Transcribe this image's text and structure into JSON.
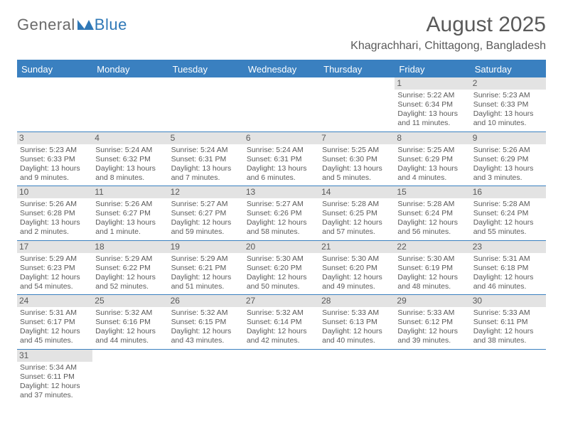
{
  "logo": {
    "part1": "General",
    "part2": "Blue"
  },
  "title": "August 2025",
  "location": "Khagrachhari, Chittagong, Bangladesh",
  "dayHeaders": [
    "Sunday",
    "Monday",
    "Tuesday",
    "Wednesday",
    "Thursday",
    "Friday",
    "Saturday"
  ],
  "colors": {
    "accent": "#3a80c0",
    "text": "#5a5a5a",
    "dayBg": "#e3e3e3",
    "background": "#ffffff"
  },
  "weeks": [
    [
      {
        "n": "",
        "sr": "",
        "ss": "",
        "dl": ""
      },
      {
        "n": "",
        "sr": "",
        "ss": "",
        "dl": ""
      },
      {
        "n": "",
        "sr": "",
        "ss": "",
        "dl": ""
      },
      {
        "n": "",
        "sr": "",
        "ss": "",
        "dl": ""
      },
      {
        "n": "",
        "sr": "",
        "ss": "",
        "dl": ""
      },
      {
        "n": "1",
        "sr": "Sunrise: 5:22 AM",
        "ss": "Sunset: 6:34 PM",
        "dl": "Daylight: 13 hours and 11 minutes."
      },
      {
        "n": "2",
        "sr": "Sunrise: 5:23 AM",
        "ss": "Sunset: 6:33 PM",
        "dl": "Daylight: 13 hours and 10 minutes."
      }
    ],
    [
      {
        "n": "3",
        "sr": "Sunrise: 5:23 AM",
        "ss": "Sunset: 6:33 PM",
        "dl": "Daylight: 13 hours and 9 minutes."
      },
      {
        "n": "4",
        "sr": "Sunrise: 5:24 AM",
        "ss": "Sunset: 6:32 PM",
        "dl": "Daylight: 13 hours and 8 minutes."
      },
      {
        "n": "5",
        "sr": "Sunrise: 5:24 AM",
        "ss": "Sunset: 6:31 PM",
        "dl": "Daylight: 13 hours and 7 minutes."
      },
      {
        "n": "6",
        "sr": "Sunrise: 5:24 AM",
        "ss": "Sunset: 6:31 PM",
        "dl": "Daylight: 13 hours and 6 minutes."
      },
      {
        "n": "7",
        "sr": "Sunrise: 5:25 AM",
        "ss": "Sunset: 6:30 PM",
        "dl": "Daylight: 13 hours and 5 minutes."
      },
      {
        "n": "8",
        "sr": "Sunrise: 5:25 AM",
        "ss": "Sunset: 6:29 PM",
        "dl": "Daylight: 13 hours and 4 minutes."
      },
      {
        "n": "9",
        "sr": "Sunrise: 5:26 AM",
        "ss": "Sunset: 6:29 PM",
        "dl": "Daylight: 13 hours and 3 minutes."
      }
    ],
    [
      {
        "n": "10",
        "sr": "Sunrise: 5:26 AM",
        "ss": "Sunset: 6:28 PM",
        "dl": "Daylight: 13 hours and 2 minutes."
      },
      {
        "n": "11",
        "sr": "Sunrise: 5:26 AM",
        "ss": "Sunset: 6:27 PM",
        "dl": "Daylight: 13 hours and 1 minute."
      },
      {
        "n": "12",
        "sr": "Sunrise: 5:27 AM",
        "ss": "Sunset: 6:27 PM",
        "dl": "Daylight: 12 hours and 59 minutes."
      },
      {
        "n": "13",
        "sr": "Sunrise: 5:27 AM",
        "ss": "Sunset: 6:26 PM",
        "dl": "Daylight: 12 hours and 58 minutes."
      },
      {
        "n": "14",
        "sr": "Sunrise: 5:28 AM",
        "ss": "Sunset: 6:25 PM",
        "dl": "Daylight: 12 hours and 57 minutes."
      },
      {
        "n": "15",
        "sr": "Sunrise: 5:28 AM",
        "ss": "Sunset: 6:24 PM",
        "dl": "Daylight: 12 hours and 56 minutes."
      },
      {
        "n": "16",
        "sr": "Sunrise: 5:28 AM",
        "ss": "Sunset: 6:24 PM",
        "dl": "Daylight: 12 hours and 55 minutes."
      }
    ],
    [
      {
        "n": "17",
        "sr": "Sunrise: 5:29 AM",
        "ss": "Sunset: 6:23 PM",
        "dl": "Daylight: 12 hours and 54 minutes."
      },
      {
        "n": "18",
        "sr": "Sunrise: 5:29 AM",
        "ss": "Sunset: 6:22 PM",
        "dl": "Daylight: 12 hours and 52 minutes."
      },
      {
        "n": "19",
        "sr": "Sunrise: 5:29 AM",
        "ss": "Sunset: 6:21 PM",
        "dl": "Daylight: 12 hours and 51 minutes."
      },
      {
        "n": "20",
        "sr": "Sunrise: 5:30 AM",
        "ss": "Sunset: 6:20 PM",
        "dl": "Daylight: 12 hours and 50 minutes."
      },
      {
        "n": "21",
        "sr": "Sunrise: 5:30 AM",
        "ss": "Sunset: 6:20 PM",
        "dl": "Daylight: 12 hours and 49 minutes."
      },
      {
        "n": "22",
        "sr": "Sunrise: 5:30 AM",
        "ss": "Sunset: 6:19 PM",
        "dl": "Daylight: 12 hours and 48 minutes."
      },
      {
        "n": "23",
        "sr": "Sunrise: 5:31 AM",
        "ss": "Sunset: 6:18 PM",
        "dl": "Daylight: 12 hours and 46 minutes."
      }
    ],
    [
      {
        "n": "24",
        "sr": "Sunrise: 5:31 AM",
        "ss": "Sunset: 6:17 PM",
        "dl": "Daylight: 12 hours and 45 minutes."
      },
      {
        "n": "25",
        "sr": "Sunrise: 5:32 AM",
        "ss": "Sunset: 6:16 PM",
        "dl": "Daylight: 12 hours and 44 minutes."
      },
      {
        "n": "26",
        "sr": "Sunrise: 5:32 AM",
        "ss": "Sunset: 6:15 PM",
        "dl": "Daylight: 12 hours and 43 minutes."
      },
      {
        "n": "27",
        "sr": "Sunrise: 5:32 AM",
        "ss": "Sunset: 6:14 PM",
        "dl": "Daylight: 12 hours and 42 minutes."
      },
      {
        "n": "28",
        "sr": "Sunrise: 5:33 AM",
        "ss": "Sunset: 6:13 PM",
        "dl": "Daylight: 12 hours and 40 minutes."
      },
      {
        "n": "29",
        "sr": "Sunrise: 5:33 AM",
        "ss": "Sunset: 6:12 PM",
        "dl": "Daylight: 12 hours and 39 minutes."
      },
      {
        "n": "30",
        "sr": "Sunrise: 5:33 AM",
        "ss": "Sunset: 6:11 PM",
        "dl": "Daylight: 12 hours and 38 minutes."
      }
    ],
    [
      {
        "n": "31",
        "sr": "Sunrise: 5:34 AM",
        "ss": "Sunset: 6:11 PM",
        "dl": "Daylight: 12 hours and 37 minutes."
      },
      {
        "n": "",
        "sr": "",
        "ss": "",
        "dl": ""
      },
      {
        "n": "",
        "sr": "",
        "ss": "",
        "dl": ""
      },
      {
        "n": "",
        "sr": "",
        "ss": "",
        "dl": ""
      },
      {
        "n": "",
        "sr": "",
        "ss": "",
        "dl": ""
      },
      {
        "n": "",
        "sr": "",
        "ss": "",
        "dl": ""
      },
      {
        "n": "",
        "sr": "",
        "ss": "",
        "dl": ""
      }
    ]
  ]
}
